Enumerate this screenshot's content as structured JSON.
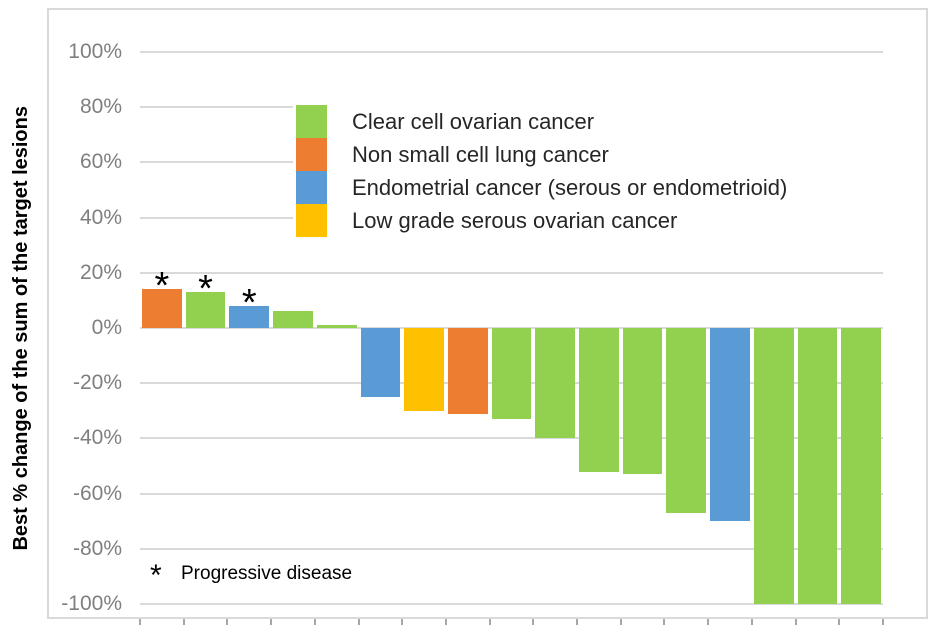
{
  "chart_data": {
    "type": "bar",
    "subtype": "waterfall",
    "title": "",
    "xlabel": "",
    "ylabel": "Best % change of the sum of the target lesions",
    "ylim": [
      -100,
      100
    ],
    "ytick_interval": 20,
    "yticks": [
      {
        "value": 100,
        "label": "100%"
      },
      {
        "value": 80,
        "label": "80%"
      },
      {
        "value": 60,
        "label": "60%"
      },
      {
        "value": 40,
        "label": "40%"
      },
      {
        "value": 20,
        "label": "20%"
      },
      {
        "value": 0,
        "label": "0%"
      },
      {
        "value": -20,
        "label": "-20%"
      },
      {
        "value": -40,
        "label": "-40%"
      },
      {
        "value": -60,
        "label": "-60%"
      },
      {
        "value": -80,
        "label": "-80%"
      },
      {
        "value": -100,
        "label": "-100%"
      }
    ],
    "grid": true,
    "legend_position": "inside-top-center",
    "legend": [
      {
        "key": "clear_cell",
        "label": "Clear cell ovarian cancer",
        "color": "#92D050"
      },
      {
        "key": "nsclc",
        "label": "Non small cell lung cancer",
        "color": "#ED7D31"
      },
      {
        "key": "endometrial",
        "label": "Endometrial cancer (serous or endometrioid)",
        "color": "#5B9BD5"
      },
      {
        "key": "low_grade_serous",
        "label": "Low grade serous ovarian cancer",
        "color": "#FFC000"
      }
    ],
    "bars": [
      {
        "value": 14,
        "group": "nsclc",
        "progressive_disease": true
      },
      {
        "value": 13,
        "group": "clear_cell",
        "progressive_disease": true
      },
      {
        "value": 8,
        "group": "endometrial",
        "progressive_disease": true
      },
      {
        "value": 6,
        "group": "clear_cell",
        "progressive_disease": false
      },
      {
        "value": 1,
        "group": "clear_cell",
        "progressive_disease": false
      },
      {
        "value": -25,
        "group": "endometrial",
        "progressive_disease": false
      },
      {
        "value": -30,
        "group": "low_grade_serous",
        "progressive_disease": false
      },
      {
        "value": -31,
        "group": "nsclc",
        "progressive_disease": false
      },
      {
        "value": -33,
        "group": "clear_cell",
        "progressive_disease": false
      },
      {
        "value": -40,
        "group": "clear_cell",
        "progressive_disease": false
      },
      {
        "value": -52,
        "group": "clear_cell",
        "progressive_disease": false
      },
      {
        "value": -53,
        "group": "clear_cell",
        "progressive_disease": false
      },
      {
        "value": -67,
        "group": "clear_cell",
        "progressive_disease": false
      },
      {
        "value": -70,
        "group": "endometrial",
        "progressive_disease": false
      },
      {
        "value": -100,
        "group": "clear_cell",
        "progressive_disease": false
      },
      {
        "value": -100,
        "group": "clear_cell",
        "progressive_disease": false
      },
      {
        "value": -100,
        "group": "clear_cell",
        "progressive_disease": false
      }
    ],
    "marker_symbol": "*",
    "footnote": {
      "symbol": "*",
      "label": "Progressive disease"
    },
    "colors": {
      "gridline": "#D9D9D9",
      "chart_border": "#D9D9D9",
      "axis_tick": "#A6A6A6",
      "axis_label_text": "#7F7F7F",
      "legend_text": "#262626",
      "footnote_text": "#000000",
      "y_title_text": "#000000"
    }
  }
}
